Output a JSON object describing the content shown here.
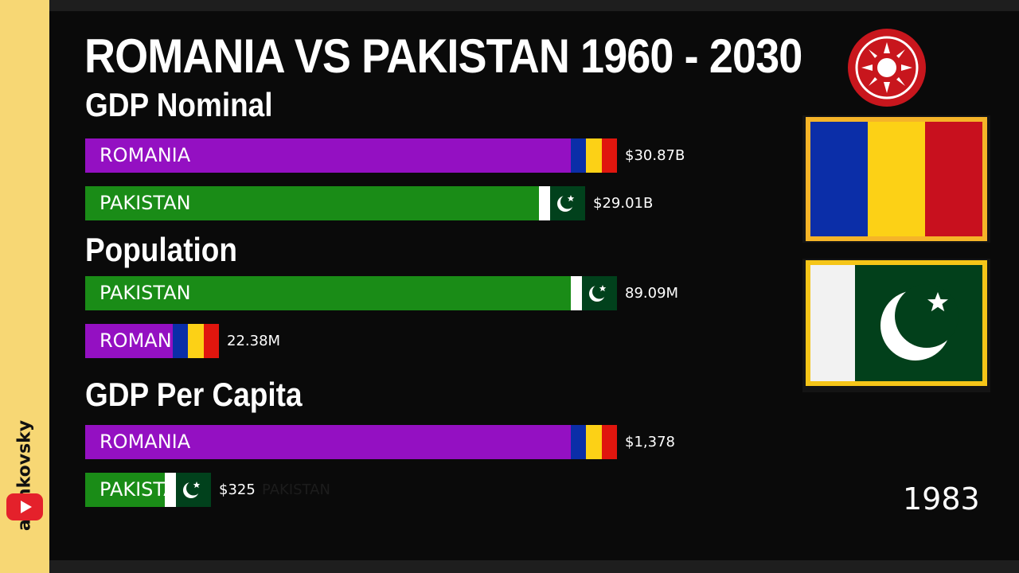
{
  "title": "ROMANIA VS PAKISTAN 1960 - 2030",
  "sidebar": {
    "channel": "aninkovsky",
    "platform_icon": "youtube-icon"
  },
  "year": "1983",
  "colors": {
    "romania_bar": "#9410c2",
    "pakistan_bar": "#1a8c17",
    "romania_flag": [
      "#0b2ea8",
      "#fcd116",
      "#e0160e"
    ],
    "pakistan_flag": [
      "#ffffff",
      "#01411c"
    ]
  },
  "sections": {
    "gdp_nominal": {
      "label": "GDP Nominal",
      "rows": [
        {
          "country": "ROMANIA",
          "value_label": "$30.87B"
        },
        {
          "country": "PAKISTAN",
          "value_label": "$29.01B"
        }
      ]
    },
    "population": {
      "label": "Population",
      "rows": [
        {
          "country": "PAKISTAN",
          "value_label": "89.09M"
        },
        {
          "country": "ROMANIA",
          "value_label": "22.38M"
        }
      ]
    },
    "gdp_per_capita": {
      "label": "GDP Per Capita",
      "rows": [
        {
          "country": "ROMANIA",
          "value_label": "$1,378"
        },
        {
          "country": "PAKISTAN",
          "value_label": "$325"
        }
      ],
      "faded_label": "PAKISTAN"
    }
  },
  "chart_data": [
    {
      "type": "bar",
      "title": "GDP Nominal",
      "categories": [
        "ROMANIA",
        "PAKISTAN"
      ],
      "values": [
        30.87,
        29.01
      ],
      "unit": "B USD"
    },
    {
      "type": "bar",
      "title": "Population",
      "categories": [
        "PAKISTAN",
        "ROMANIA"
      ],
      "values": [
        89.09,
        22.38
      ],
      "unit": "M"
    },
    {
      "type": "bar",
      "title": "GDP Per Capita",
      "categories": [
        "ROMANIA",
        "PAKISTAN"
      ],
      "values": [
        1378,
        325
      ],
      "unit": "USD"
    }
  ]
}
